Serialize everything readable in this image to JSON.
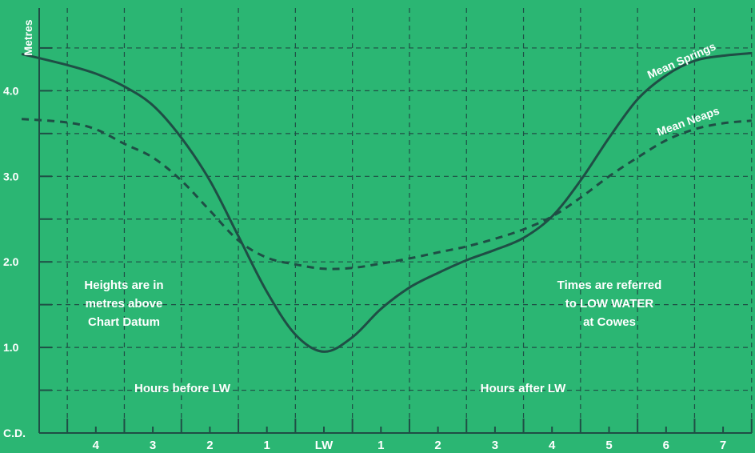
{
  "chart_data": {
    "type": "line",
    "ylabel": "Metres",
    "y_ticks": [
      {
        "value": 4.0,
        "label": "4.0"
      },
      {
        "value": 3.0,
        "label": "3.0"
      },
      {
        "value": 2.0,
        "label": "2.0"
      },
      {
        "value": 1.0,
        "label": "1.0"
      },
      {
        "value": 0,
        "label": "C.D."
      }
    ],
    "ylim": [
      0,
      5
    ],
    "xlim": [
      -5.3,
      7.5
    ],
    "x_ticks": [
      {
        "value": -4,
        "label": "4"
      },
      {
        "value": -3,
        "label": "3"
      },
      {
        "value": -2,
        "label": "2"
      },
      {
        "value": -1,
        "label": "1"
      },
      {
        "value": 0,
        "label": "LW"
      },
      {
        "value": 1,
        "label": "1"
      },
      {
        "value": 2,
        "label": "2"
      },
      {
        "value": 3,
        "label": "3"
      },
      {
        "value": 4,
        "label": "4"
      },
      {
        "value": 5,
        "label": "5"
      },
      {
        "value": 6,
        "label": "6"
      },
      {
        "value": 7,
        "label": "7"
      }
    ],
    "grid": true,
    "series": [
      {
        "name": "Mean Springs",
        "style": "solid",
        "points": [
          [
            -5.3,
            4.43
          ],
          [
            -4.5,
            4.3
          ],
          [
            -4.0,
            4.2
          ],
          [
            -3.5,
            4.05
          ],
          [
            -3.0,
            3.83
          ],
          [
            -2.5,
            3.45
          ],
          [
            -2.0,
            2.95
          ],
          [
            -1.5,
            2.3
          ],
          [
            -1.0,
            1.65
          ],
          [
            -0.5,
            1.15
          ],
          [
            0.0,
            0.95
          ],
          [
            0.5,
            1.12
          ],
          [
            1.0,
            1.45
          ],
          [
            1.5,
            1.7
          ],
          [
            2.0,
            1.87
          ],
          [
            2.5,
            2.02
          ],
          [
            3.0,
            2.14
          ],
          [
            3.5,
            2.28
          ],
          [
            4.0,
            2.53
          ],
          [
            4.5,
            2.95
          ],
          [
            5.0,
            3.45
          ],
          [
            5.5,
            3.9
          ],
          [
            6.0,
            4.18
          ],
          [
            6.5,
            4.35
          ],
          [
            7.0,
            4.41
          ],
          [
            7.5,
            4.44
          ]
        ]
      },
      {
        "name": "Mean Neaps",
        "style": "dashed",
        "points": [
          [
            -5.3,
            3.67
          ],
          [
            -4.5,
            3.63
          ],
          [
            -4.0,
            3.55
          ],
          [
            -3.5,
            3.38
          ],
          [
            -3.0,
            3.22
          ],
          [
            -2.5,
            2.95
          ],
          [
            -2.0,
            2.6
          ],
          [
            -1.5,
            2.25
          ],
          [
            -1.0,
            2.05
          ],
          [
            -0.5,
            1.97
          ],
          [
            0.0,
            1.92
          ],
          [
            0.5,
            1.93
          ],
          [
            1.0,
            1.98
          ],
          [
            1.5,
            2.04
          ],
          [
            2.0,
            2.11
          ],
          [
            2.5,
            2.18
          ],
          [
            3.0,
            2.27
          ],
          [
            3.5,
            2.38
          ],
          [
            4.0,
            2.53
          ],
          [
            4.5,
            2.75
          ],
          [
            5.0,
            3.0
          ],
          [
            5.5,
            3.22
          ],
          [
            6.0,
            3.42
          ],
          [
            6.5,
            3.55
          ],
          [
            7.0,
            3.62
          ],
          [
            7.5,
            3.65
          ]
        ]
      }
    ],
    "annotations": [
      {
        "key": "heights",
        "lines": [
          "Heights are in",
          "metres above",
          "Chart Datum"
        ]
      },
      {
        "key": "times",
        "lines": [
          "Times are referred",
          "to LOW WATER",
          "at Cowes"
        ]
      },
      {
        "key": "before",
        "lines": [
          "Hours before LW"
        ]
      },
      {
        "key": "after",
        "lines": [
          "Hours after LW"
        ]
      }
    ]
  }
}
